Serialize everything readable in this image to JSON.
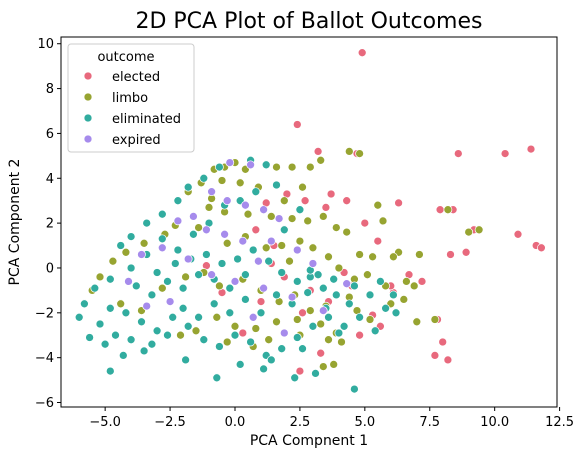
{
  "chart_data": {
    "type": "scatter",
    "title": "2D PCA Plot of Ballot Outcomes",
    "xlabel": "PCA Compnent 1",
    "ylabel": "PCA Component 2",
    "xlim": [
      -6.7,
      12.4
    ],
    "ylim": [
      -6.2,
      10.3
    ],
    "xticks": [
      -5.0,
      -2.5,
      0.0,
      2.5,
      5.0,
      7.5,
      10.0,
      12.5
    ],
    "xtick_labels": [
      "−5.0",
      "−2.5",
      "0.0",
      "2.5",
      "5.0",
      "7.5",
      "10.0",
      "12.5"
    ],
    "yticks": [
      -6,
      -4,
      -2,
      0,
      2,
      4,
      6,
      8,
      10
    ],
    "ytick_labels": [
      "−6",
      "−4",
      "−2",
      "0",
      "2",
      "4",
      "6",
      "8",
      "10"
    ],
    "grid": false,
    "legend": {
      "title": "outcome",
      "placement": "top-left"
    },
    "series": [
      {
        "name": "elected",
        "color": "#e8697d",
        "points": [
          [
            4.9,
            9.6
          ],
          [
            2.4,
            6.4
          ],
          [
            11.4,
            5.3
          ],
          [
            10.4,
            5.1
          ],
          [
            8.6,
            5.1
          ],
          [
            3.2,
            5.2
          ],
          [
            4.7,
            5.1
          ],
          [
            6.3,
            2.9
          ],
          [
            7.9,
            2.6
          ],
          [
            8.4,
            2.6
          ],
          [
            9.2,
            1.7
          ],
          [
            10.9,
            1.5
          ],
          [
            11.6,
            1.0
          ],
          [
            11.8,
            0.9
          ],
          [
            8.9,
            0.7
          ],
          [
            8.3,
            0.6
          ],
          [
            7.2,
            -0.6
          ],
          [
            6.1,
            -1.1
          ],
          [
            7.8,
            -2.3
          ],
          [
            8.0,
            -3.3
          ],
          [
            8.2,
            -4.1
          ],
          [
            7.7,
            -3.9
          ],
          [
            2.5,
            -4.6
          ],
          [
            5.3,
            -2.1
          ],
          [
            5.6,
            -2.6
          ],
          [
            3.6,
            -1.5
          ],
          [
            4.2,
            -0.2
          ],
          [
            4.5,
            -0.8
          ],
          [
            6.7,
            -0.3
          ],
          [
            1.2,
            2.9
          ],
          [
            2.0,
            3.3
          ],
          [
            2.7,
            3.0
          ],
          [
            3.5,
            2.7
          ],
          [
            3.7,
            3.3
          ],
          [
            4.3,
            3.0
          ],
          [
            1.0,
            -1.5
          ],
          [
            1.4,
            0.2
          ],
          [
            1.9,
            -0.4
          ],
          [
            2.6,
            -2.0
          ],
          [
            2.9,
            -1.0
          ],
          [
            0.8,
            1.7
          ],
          [
            1.5,
            1.0
          ],
          [
            0.3,
            -2.9
          ],
          [
            -0.5,
            -1.1
          ],
          [
            -1.1,
            0.1
          ],
          [
            5.0,
            2.0
          ],
          [
            5.5,
            1.2
          ],
          [
            6.0,
            -0.8
          ],
          [
            4.8,
            -3.0
          ],
          [
            3.3,
            -3.8
          ]
        ]
      },
      {
        "name": "limbo",
        "color": "#97a431",
        "points": [
          [
            9.4,
            1.7
          ],
          [
            9.0,
            1.6
          ],
          [
            8.2,
            2.6
          ],
          [
            7.7,
            -2.3
          ],
          [
            7.0,
            -2.4
          ],
          [
            6.9,
            -0.8
          ],
          [
            6.6,
            -0.6
          ],
          [
            5.8,
            -0.8
          ],
          [
            5.5,
            2.8
          ],
          [
            5.7,
            2.1
          ],
          [
            6.3,
            0.7
          ],
          [
            6.5,
            -1.4
          ],
          [
            6.0,
            -1.6
          ],
          [
            4.8,
            0.6
          ],
          [
            5.3,
            0.5
          ],
          [
            5.1,
            -0.3
          ],
          [
            4.6,
            -0.5
          ],
          [
            4.4,
            -1.3
          ],
          [
            4.0,
            0.0
          ],
          [
            3.9,
            -2.9
          ],
          [
            3.6,
            -3.2
          ],
          [
            4.1,
            -3.3
          ],
          [
            3.8,
            -4.3
          ],
          [
            3.4,
            -4.4
          ],
          [
            4.4,
            5.2
          ],
          [
            4.8,
            5.1
          ],
          [
            3.3,
            4.8
          ],
          [
            2.9,
            4.5
          ],
          [
            2.2,
            4.5
          ],
          [
            1.6,
            4.5
          ],
          [
            0.4,
            4.4
          ],
          [
            -0.8,
            4.4
          ],
          [
            -0.4,
            4.5
          ],
          [
            0.2,
            3.8
          ],
          [
            0.9,
            3.6
          ],
          [
            -0.5,
            3.9
          ],
          [
            -1.3,
            3.8
          ],
          [
            -1.8,
            3.4
          ],
          [
            -1.0,
            2.7
          ],
          [
            -0.4,
            2.5
          ],
          [
            0.5,
            2.4
          ],
          [
            1.4,
            2.3
          ],
          [
            2.2,
            2.2
          ],
          [
            2.8,
            2.1
          ],
          [
            3.4,
            2.3
          ],
          [
            3.9,
            1.8
          ],
          [
            4.3,
            1.6
          ],
          [
            2.5,
            1.2
          ],
          [
            1.8,
            1.0
          ],
          [
            1.2,
            0.9
          ],
          [
            0.4,
            1.4
          ],
          [
            -0.3,
            1.1
          ],
          [
            -1.4,
            1.8
          ],
          [
            -2.3,
            1.9
          ],
          [
            -2.7,
            1.5
          ],
          [
            -3.5,
            1.1
          ],
          [
            -4.2,
            0.7
          ],
          [
            -4.7,
            0.3
          ],
          [
            -5.2,
            -0.4
          ],
          [
            -5.5,
            -1.0
          ],
          [
            -4.4,
            -1.6
          ],
          [
            -3.6,
            -1.9
          ],
          [
            -2.8,
            -0.9
          ],
          [
            -1.9,
            -0.4
          ],
          [
            -1.2,
            -0.2
          ],
          [
            -0.6,
            -0.8
          ],
          [
            0.3,
            -0.5
          ],
          [
            1.0,
            -1.0
          ],
          [
            1.7,
            -1.5
          ],
          [
            2.3,
            -1.2
          ],
          [
            2.9,
            -1.9
          ],
          [
            3.3,
            -2.5
          ],
          [
            2.5,
            -3.0
          ],
          [
            1.6,
            -2.4
          ],
          [
            0.8,
            -2.7
          ],
          [
            0.0,
            -2.6
          ],
          [
            -0.7,
            -2.2
          ],
          [
            -1.5,
            -2.8
          ],
          [
            -2.1,
            -3.0
          ],
          [
            -0.3,
            -3.3
          ],
          [
            3.6,
            0.5
          ],
          [
            3.0,
            0.9
          ],
          [
            2.1,
            0.3
          ],
          [
            4.7,
            -1.9
          ],
          [
            5.2,
            -2.3
          ],
          [
            6.1,
            0.5
          ],
          [
            7.1,
            0.6
          ],
          [
            3.5,
            -1.7
          ],
          [
            2.4,
            -2.3
          ],
          [
            1.3,
            -3.2
          ],
          [
            0.7,
            -3.5
          ],
          [
            -0.9,
            3.1
          ],
          [
            1.9,
            3.0
          ],
          [
            2.6,
            3.6
          ],
          [
            0.0,
            4.7
          ]
        ]
      },
      {
        "name": "eliminated",
        "color": "#31ac9f",
        "points": [
          [
            4.6,
            -5.4
          ],
          [
            -4.8,
            -4.6
          ],
          [
            -0.7,
            -4.9
          ],
          [
            2.3,
            -4.9
          ],
          [
            1.1,
            -4.5
          ],
          [
            3.1,
            -4.7
          ],
          [
            0.2,
            -4.3
          ],
          [
            -1.9,
            -4.1
          ],
          [
            -3.5,
            -3.7
          ],
          [
            -4.3,
            -3.9
          ],
          [
            -5.0,
            -3.4
          ],
          [
            -5.6,
            -3.1
          ],
          [
            -6.0,
            -2.2
          ],
          [
            -5.8,
            -1.6
          ],
          [
            -5.4,
            -0.9
          ],
          [
            -4.8,
            -0.5
          ],
          [
            -4.0,
            0.0
          ],
          [
            -3.4,
            0.6
          ],
          [
            -2.8,
            1.3
          ],
          [
            -2.2,
            0.8
          ],
          [
            -1.6,
            1.5
          ],
          [
            -1.1,
            0.6
          ],
          [
            -0.5,
            0.2
          ],
          [
            0.1,
            0.4
          ],
          [
            0.7,
            0.8
          ],
          [
            1.3,
            0.3
          ],
          [
            1.8,
            -0.2
          ],
          [
            2.4,
            -0.6
          ],
          [
            2.9,
            -0.4
          ],
          [
            3.4,
            -0.9
          ],
          [
            3.9,
            -1.2
          ],
          [
            4.4,
            -1.6
          ],
          [
            4.8,
            -2.2
          ],
          [
            4.2,
            -2.6
          ],
          [
            3.6,
            -2.2
          ],
          [
            3.0,
            -2.6
          ],
          [
            2.4,
            -3.1
          ],
          [
            1.8,
            -3.6
          ],
          [
            1.2,
            -3.9
          ],
          [
            0.6,
            -3.3
          ],
          [
            0.0,
            -3.0
          ],
          [
            -0.6,
            -3.5
          ],
          [
            -1.2,
            -3.2
          ],
          [
            -1.8,
            -2.6
          ],
          [
            -2.4,
            -2.2
          ],
          [
            -3.0,
            -2.8
          ],
          [
            -3.6,
            -2.4
          ],
          [
            -4.2,
            -2.0
          ],
          [
            -4.8,
            -1.8
          ],
          [
            -5.2,
            -2.5
          ],
          [
            -4.6,
            -3.0
          ],
          [
            -4.0,
            -3.2
          ],
          [
            -3.2,
            -3.4
          ],
          [
            -2.6,
            -3.0
          ],
          [
            -2.0,
            -1.8
          ],
          [
            -1.4,
            -2.2
          ],
          [
            -0.8,
            -1.6
          ],
          [
            -0.2,
            -2.0
          ],
          [
            0.4,
            -1.4
          ],
          [
            1.0,
            -2.0
          ],
          [
            1.6,
            -1.2
          ],
          [
            2.2,
            -1.6
          ],
          [
            2.8,
            -1.1
          ],
          [
            3.2,
            -0.3
          ],
          [
            3.8,
            -0.5
          ],
          [
            4.6,
            -0.8
          ],
          [
            5.2,
            -1.2
          ],
          [
            5.8,
            -1.8
          ],
          [
            5.4,
            -2.8
          ],
          [
            6.2,
            -2.0
          ],
          [
            -3.8,
            -0.8
          ],
          [
            -3.2,
            -1.2
          ],
          [
            -2.6,
            -0.6
          ],
          [
            -2.0,
            -0.9
          ],
          [
            -1.4,
            -0.3
          ],
          [
            -0.8,
            -0.5
          ],
          [
            -0.2,
            -0.9
          ],
          [
            0.4,
            -0.3
          ],
          [
            -1.0,
            2.0
          ],
          [
            -0.4,
            2.8
          ],
          [
            0.2,
            3.0
          ],
          [
            0.8,
            3.4
          ],
          [
            1.2,
            4.6
          ],
          [
            0.6,
            4.8
          ],
          [
            -0.6,
            4.5
          ],
          [
            -1.2,
            4.0
          ],
          [
            -1.8,
            3.6
          ],
          [
            -2.2,
            3.0
          ],
          [
            -2.8,
            2.4
          ],
          [
            -3.4,
            2.0
          ],
          [
            -4.0,
            1.4
          ],
          [
            -4.4,
            1.0
          ],
          [
            -3.0,
            -0.2
          ],
          [
            -2.3,
            0.2
          ],
          [
            -1.7,
            0.4
          ],
          [
            2.9,
            -0.1
          ],
          [
            3.5,
            -1.8
          ],
          [
            4.0,
            -2.9
          ],
          [
            2.6,
            -3.6
          ],
          [
            1.4,
            -4.1
          ],
          [
            5.6,
            -0.6
          ],
          [
            6.1,
            -1.2
          ],
          [
            1.9,
            1.7
          ],
          [
            2.5,
            2.6
          ],
          [
            1.6,
            3.7
          ]
        ]
      },
      {
        "name": "expired",
        "color": "#a68bec",
        "points": [
          [
            -0.2,
            4.7
          ],
          [
            0.6,
            4.6
          ],
          [
            -0.9,
            3.4
          ],
          [
            -0.3,
            3.0
          ],
          [
            0.4,
            2.8
          ],
          [
            1.1,
            2.6
          ],
          [
            -1.6,
            2.3
          ],
          [
            -2.2,
            2.1
          ],
          [
            -1.1,
            1.7
          ],
          [
            -0.4,
            1.5
          ],
          [
            0.3,
            1.2
          ],
          [
            1.4,
            1.2
          ],
          [
            -2.8,
            0.9
          ],
          [
            -3.6,
            0.6
          ],
          [
            -1.8,
            0.4
          ],
          [
            -0.9,
            -0.3
          ],
          [
            0.0,
            -0.6
          ],
          [
            1.1,
            -0.9
          ],
          [
            2.4,
            0.8
          ],
          [
            3.0,
            0.2
          ],
          [
            2.2,
            -1.3
          ],
          [
            -2.5,
            -1.5
          ],
          [
            -3.4,
            -1.7
          ],
          [
            -4.1,
            -0.6
          ],
          [
            0.7,
            -2.2
          ],
          [
            1.9,
            -2.9
          ],
          [
            3.4,
            -1.9
          ],
          [
            4.3,
            -0.7
          ],
          [
            1.7,
            2.2
          ],
          [
            0.9,
            0.3
          ]
        ]
      }
    ]
  }
}
